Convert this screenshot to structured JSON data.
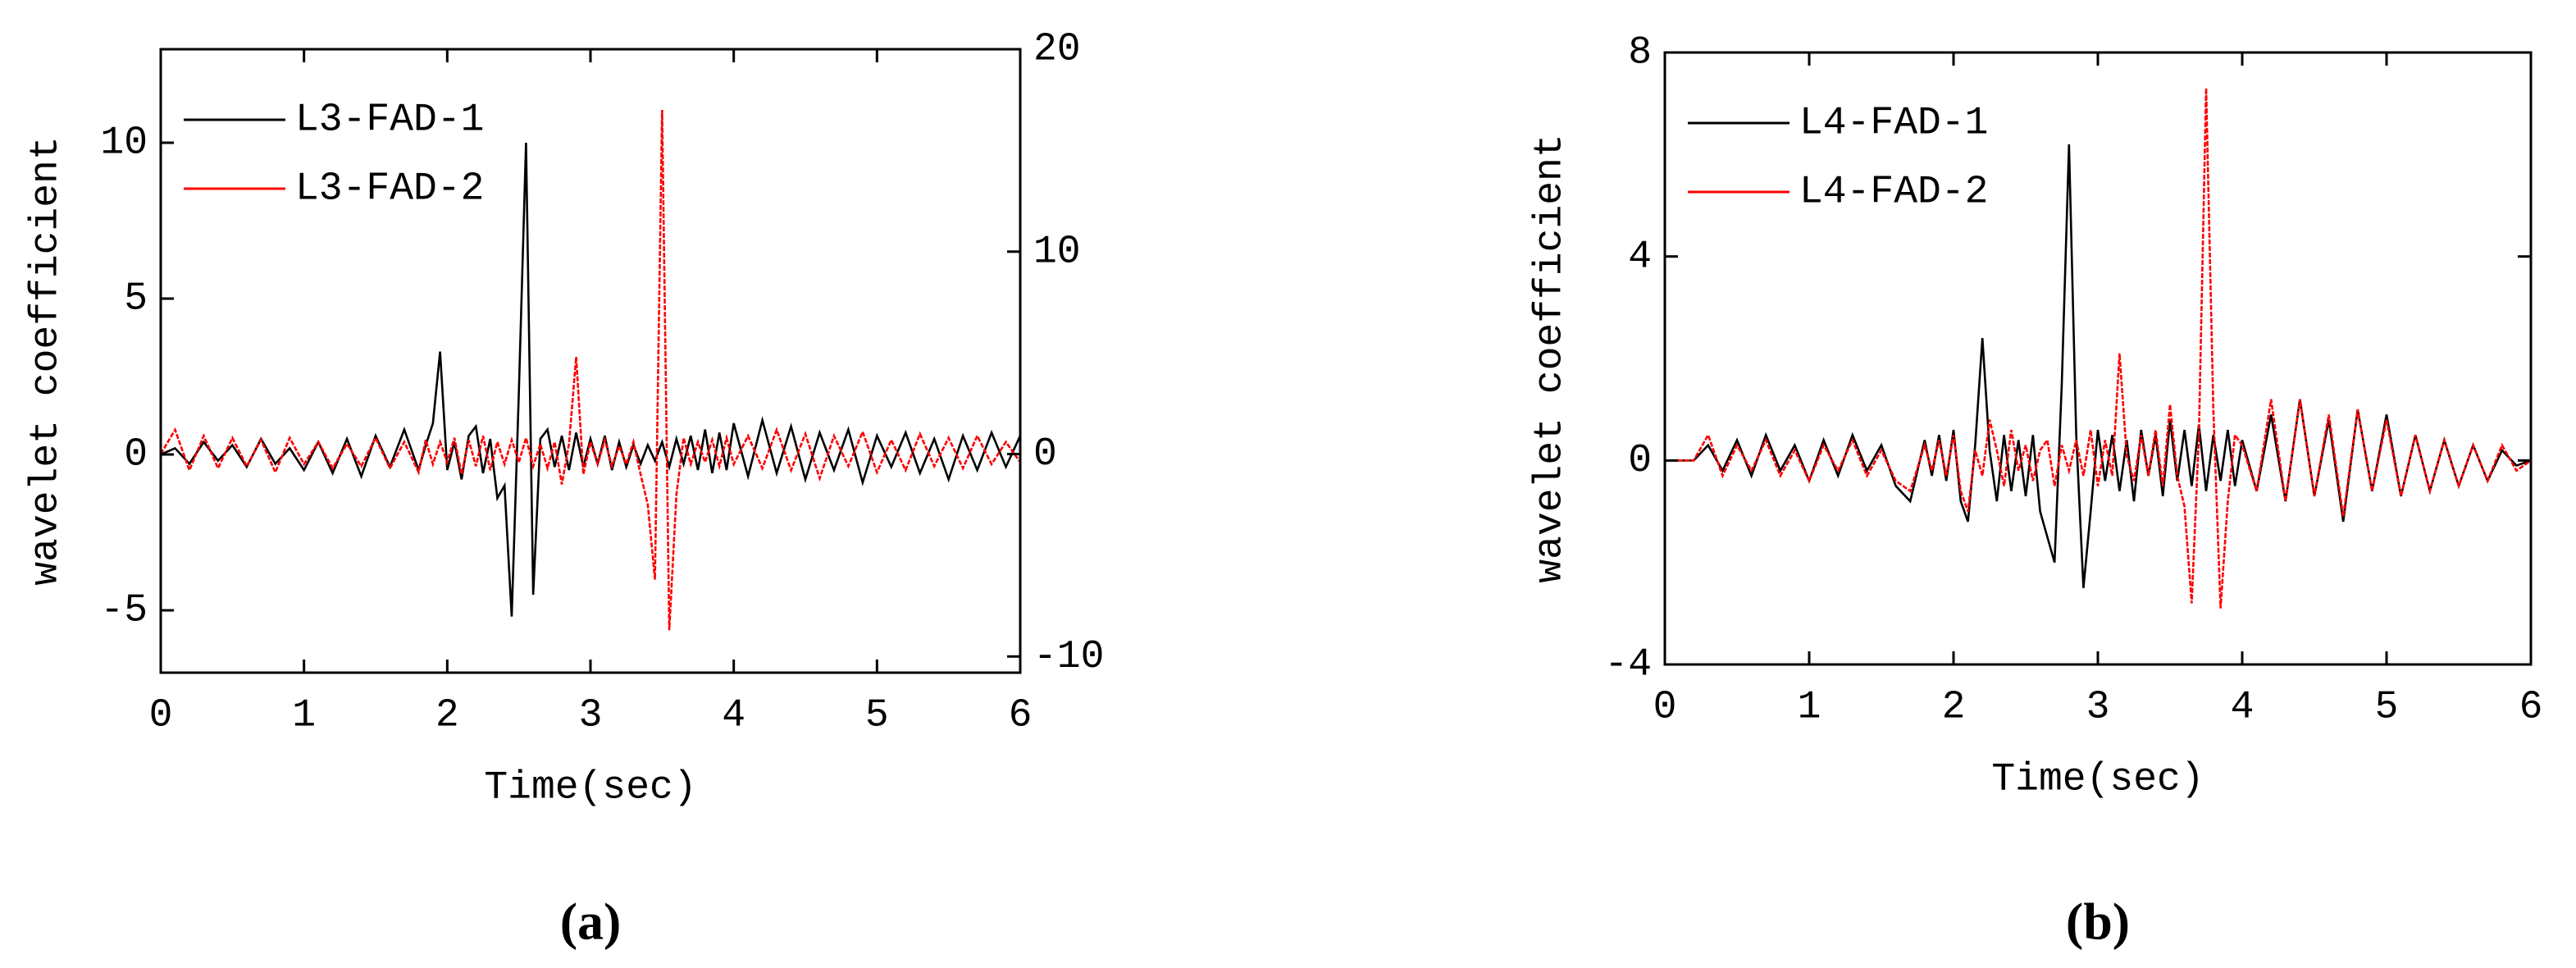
{
  "chart_data": [
    {
      "type": "line",
      "caption": "(a)",
      "xlabel": "Time(sec)",
      "ylabel": "wavelet coefficient",
      "legend": "upper left",
      "x": [
        0,
        0.1,
        0.2,
        0.3,
        0.4,
        0.5,
        0.6,
        0.7,
        0.8,
        0.9,
        1.0,
        1.1,
        1.2,
        1.3,
        1.4,
        1.5,
        1.6,
        1.7,
        1.8,
        1.85,
        1.9,
        1.95,
        2.0,
        2.05,
        2.1,
        2.15,
        2.2,
        2.25,
        2.3,
        2.35,
        2.4,
        2.45,
        2.5,
        2.55,
        2.6,
        2.65,
        2.7,
        2.75,
        2.8,
        2.85,
        2.9,
        2.95,
        3.0,
        3.05,
        3.1,
        3.15,
        3.2,
        3.25,
        3.3,
        3.35,
        3.4,
        3.45,
        3.5,
        3.55,
        3.6,
        3.65,
        3.7,
        3.75,
        3.8,
        3.85,
        3.9,
        3.95,
        4.0,
        4.1,
        4.2,
        4.3,
        4.4,
        4.5,
        4.6,
        4.7,
        4.8,
        4.9,
        5.0,
        5.1,
        5.2,
        5.3,
        5.4,
        5.5,
        5.6,
        5.7,
        5.8,
        5.9,
        6.0
      ],
      "xlim": [
        0,
        6
      ],
      "xticks": [
        0,
        1,
        2,
        3,
        4,
        5,
        6
      ],
      "ylim": [
        -7,
        13
      ],
      "yticks": [
        -5,
        0,
        5,
        10
      ],
      "y2lim": [
        -10.8,
        20
      ],
      "y2ticks": [
        -10,
        0,
        10,
        20
      ],
      "series": [
        {
          "name": "L3-FAD-1",
          "color": "#000000",
          "values": [
            0,
            0.2,
            -0.3,
            0.4,
            -0.2,
            0.3,
            -0.4,
            0.5,
            -0.3,
            0.2,
            -0.5,
            0.4,
            -0.6,
            0.5,
            -0.7,
            0.6,
            -0.4,
            0.8,
            -0.5,
            0.3,
            1.0,
            3.3,
            -0.5,
            0.4,
            -0.8,
            0.6,
            0.9,
            -0.6,
            0.5,
            -1.4,
            -1.0,
            -5.2,
            2.0,
            10.0,
            -4.5,
            0.5,
            0.8,
            -0.4,
            0.6,
            -0.5,
            0.7,
            -0.4,
            0.5,
            -0.3,
            0.6,
            -0.5,
            0.4,
            -0.4,
            0.3,
            -0.3,
            0.3,
            -0.2,
            0.4,
            -0.4,
            0.5,
            -0.3,
            0.6,
            -0.5,
            0.8,
            -0.6,
            0.7,
            -0.5,
            1.0,
            -0.7,
            1.1,
            -0.6,
            0.9,
            -0.8,
            0.7,
            -0.5,
            0.8,
            -0.9,
            0.6,
            -0.4,
            0.7,
            -0.6,
            0.5,
            -0.8,
            0.6,
            -0.5,
            0.7,
            -0.4,
            0.6
          ]
        },
        {
          "name": "L3-FAD-2",
          "color": "#ff0000",
          "axis": "y2",
          "values": [
            0,
            1.2,
            -0.8,
            0.9,
            -0.7,
            0.8,
            -0.6,
            0.7,
            -0.9,
            0.8,
            -0.5,
            0.6,
            -0.7,
            0.5,
            -0.6,
            0.8,
            -0.7,
            0.6,
            -0.9,
            0.7,
            -0.5,
            0.6,
            -0.4,
            0.8,
            -1.0,
            0.7,
            -0.6,
            0.9,
            -0.8,
            0.6,
            -0.5,
            0.7,
            -0.4,
            0.8,
            -0.6,
            0.5,
            -0.7,
            0.6,
            -1.5,
            0.5,
            4.8,
            -1.0,
            0.6,
            -0.5,
            0.7,
            -0.6,
            0.4,
            -0.5,
            0.6,
            -1.0,
            -2.5,
            -6.2,
            17.0,
            -8.7,
            -2.0,
            0.8,
            -0.5,
            0.6,
            -0.4,
            0.7,
            -0.6,
            0.8,
            -0.5,
            0.9,
            -0.7,
            1.2,
            -0.8,
            1.0,
            -1.2,
            0.9,
            -0.6,
            1.1,
            -0.9,
            0.7,
            -0.8,
            1.0,
            -0.6,
            0.8,
            -0.7,
            0.9,
            -0.5,
            0.6,
            -0.4
          ]
        }
      ]
    },
    {
      "type": "line",
      "caption": "(b)",
      "xlabel": "Time(sec)",
      "ylabel": "wavelet coefficient",
      "legend": "upper left",
      "x": [
        0,
        0.1,
        0.2,
        0.3,
        0.4,
        0.5,
        0.6,
        0.7,
        0.8,
        0.9,
        1.0,
        1.1,
        1.2,
        1.3,
        1.4,
        1.5,
        1.6,
        1.7,
        1.8,
        1.85,
        1.9,
        1.95,
        2.0,
        2.05,
        2.1,
        2.15,
        2.2,
        2.25,
        2.3,
        2.35,
        2.4,
        2.45,
        2.5,
        2.55,
        2.6,
        2.65,
        2.7,
        2.75,
        2.8,
        2.85,
        2.9,
        2.95,
        3.0,
        3.05,
        3.1,
        3.15,
        3.2,
        3.25,
        3.3,
        3.35,
        3.4,
        3.45,
        3.5,
        3.55,
        3.6,
        3.65,
        3.7,
        3.75,
        3.8,
        3.85,
        3.9,
        3.95,
        4.0,
        4.1,
        4.2,
        4.3,
        4.4,
        4.5,
        4.6,
        4.7,
        4.8,
        4.9,
        5.0,
        5.1,
        5.2,
        5.3,
        5.4,
        5.5,
        5.6,
        5.7,
        5.8,
        5.9,
        6.0
      ],
      "xlim": [
        0,
        6
      ],
      "xticks": [
        0,
        1,
        2,
        3,
        4,
        5,
        6
      ],
      "ylim": [
        -4,
        8
      ],
      "yticks": [
        -4,
        0,
        4,
        8
      ],
      "series": [
        {
          "name": "L4-FAD-1",
          "color": "#000000",
          "values": [
            0,
            0,
            0,
            0.3,
            -0.2,
            0.4,
            -0.3,
            0.5,
            -0.2,
            0.3,
            -0.4,
            0.4,
            -0.3,
            0.5,
            -0.2,
            0.3,
            -0.5,
            -0.8,
            0.4,
            -0.3,
            0.5,
            -0.4,
            0.6,
            -0.8,
            -1.2,
            0.3,
            2.4,
            0.2,
            -0.8,
            0.5,
            -0.6,
            0.4,
            -0.7,
            0.5,
            -1.0,
            -1.5,
            -2.0,
            1.5,
            6.2,
            0.5,
            -2.5,
            -1.0,
            0.6,
            -0.4,
            0.5,
            -0.6,
            0.4,
            -0.8,
            0.6,
            -0.3,
            0.5,
            -0.7,
            0.8,
            -0.4,
            0.6,
            -0.5,
            0.7,
            -0.6,
            0.5,
            -0.4,
            0.6,
            -0.5,
            0.4,
            -0.6,
            0.9,
            -0.8,
            1.2,
            -0.7,
            0.8,
            -1.2,
            1.0,
            -0.6,
            0.9,
            -0.7,
            0.5,
            -0.6,
            0.4,
            -0.5,
            0.3,
            -0.4,
            0.2,
            -0.1,
            0
          ]
        },
        {
          "name": "L4-FAD-2",
          "color": "#ff0000",
          "values": [
            0,
            0,
            0,
            0.5,
            -0.3,
            0.3,
            -0.2,
            0.4,
            -0.3,
            0.2,
            -0.4,
            0.3,
            -0.2,
            0.4,
            -0.3,
            0.2,
            -0.4,
            -0.6,
            0.3,
            -0.2,
            0.4,
            -0.3,
            0.5,
            -0.6,
            -1.0,
            0.2,
            -0.3,
            0.8,
            0.2,
            -0.5,
            0.6,
            -0.2,
            0.3,
            -0.4,
            0.2,
            0.4,
            -0.5,
            0.3,
            -0.2,
            0.4,
            -0.3,
            0.6,
            -0.5,
            0.4,
            -0.3,
            2.1,
            0.1,
            -0.4,
            0.5,
            -0.3,
            0.6,
            -0.5,
            1.1,
            -0.3,
            -0.9,
            -2.8,
            0.5,
            7.3,
            1.0,
            -2.9,
            -0.8,
            0.5,
            0.3,
            -0.6,
            1.2,
            -0.8,
            1.2,
            -0.7,
            0.9,
            -1.1,
            1.0,
            -0.6,
            0.8,
            -0.7,
            0.5,
            -0.6,
            0.4,
            -0.5,
            0.3,
            -0.4,
            0.3,
            -0.2,
            0
          ]
        }
      ]
    }
  ]
}
